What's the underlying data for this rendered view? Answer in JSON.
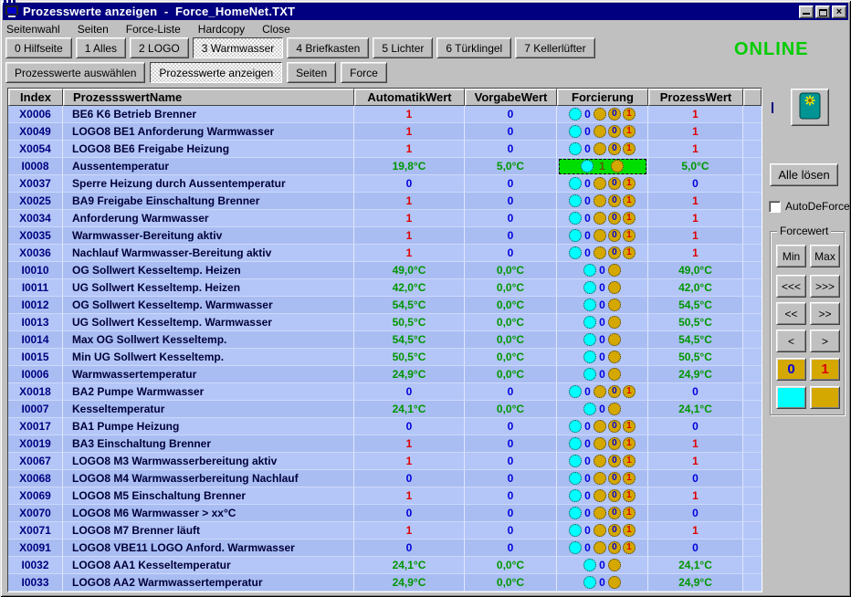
{
  "window": {
    "title": "Prozesswerte anzeigen  -  Force_HomeNet.TXT",
    "online_status": "ONLINE"
  },
  "menu": {
    "items": [
      "Seitenwahl",
      "Seiten",
      "Force-Liste",
      "Hardcopy",
      "Close"
    ]
  },
  "toolbar_pages": [
    {
      "label": "0 Hilfseite",
      "active": false
    },
    {
      "label": "1 Alles",
      "active": false
    },
    {
      "label": "2 LOGO",
      "active": false
    },
    {
      "label": "3 Warmwasser",
      "active": true
    },
    {
      "label": "4 Briefkasten",
      "active": false
    },
    {
      "label": "5 Lichter",
      "active": false
    },
    {
      "label": "6 Türklingel",
      "active": false
    },
    {
      "label": "7 Kellerlüfter",
      "active": false
    }
  ],
  "toolbar_views": [
    {
      "label": "Prozesswerte auswählen",
      "active": false
    },
    {
      "label": "Prozesswerte anzeigen",
      "active": true
    },
    {
      "label": "Seiten",
      "active": false
    },
    {
      "label": "Force",
      "active": false
    }
  ],
  "table": {
    "headers": [
      "Index",
      "ProzessswertName",
      "AutomatikWert",
      "VorgabeWert",
      "Forcierung",
      "ProzessWert"
    ],
    "force_labels": {
      "off": "0",
      "on": "1"
    },
    "rows": [
      {
        "index": "X0006",
        "name": "BE6 K6 Betrieb Brenner",
        "auto": "1",
        "vorgabe": "0",
        "prozess": "1",
        "kind": "binary",
        "forced": false
      },
      {
        "index": "X0049",
        "name": "LOGO8 BE1 Anforderung Warmwasser",
        "auto": "1",
        "vorgabe": "0",
        "prozess": "1",
        "kind": "binary",
        "forced": false
      },
      {
        "index": "X0054",
        "name": "LOGO8 BE6 Freigabe Heizung",
        "auto": "1",
        "vorgabe": "0",
        "prozess": "1",
        "kind": "binary",
        "forced": false
      },
      {
        "index": "I0008",
        "name": "Aussentemperatur",
        "auto": "19,8°C",
        "vorgabe": "5,0°C",
        "prozess": "5,0°C",
        "kind": "analog",
        "forced": true
      },
      {
        "index": "X0037",
        "name": "Sperre Heizung durch Aussentemperatur",
        "auto": "0",
        "vorgabe": "0",
        "prozess": "0",
        "kind": "binary",
        "forced": false
      },
      {
        "index": "X0025",
        "name": "BA9 Freigabe Einschaltung Brenner",
        "auto": "1",
        "vorgabe": "0",
        "prozess": "1",
        "kind": "binary",
        "forced": false
      },
      {
        "index": "X0034",
        "name": "Anforderung Warmwasser",
        "auto": "1",
        "vorgabe": "0",
        "prozess": "1",
        "kind": "binary",
        "forced": false
      },
      {
        "index": "X0035",
        "name": "Warmwasser-Bereitung aktiv",
        "auto": "1",
        "vorgabe": "0",
        "prozess": "1",
        "kind": "binary",
        "forced": false
      },
      {
        "index": "X0036",
        "name": "Nachlauf Warmwasser-Bereitung aktiv",
        "auto": "1",
        "vorgabe": "0",
        "prozess": "1",
        "kind": "binary",
        "forced": false
      },
      {
        "index": "I0010",
        "name": "OG Sollwert Kesseltemp. Heizen",
        "auto": "49,0°C",
        "vorgabe": "0,0°C",
        "prozess": "49,0°C",
        "kind": "analog",
        "forced": false
      },
      {
        "index": "I0011",
        "name": "UG Sollwert Kesseltemp. Heizen",
        "auto": "42,0°C",
        "vorgabe": "0,0°C",
        "prozess": "42,0°C",
        "kind": "analog",
        "forced": false
      },
      {
        "index": "I0012",
        "name": "OG Sollwert Kesseltemp. Warmwasser",
        "auto": "54,5°C",
        "vorgabe": "0,0°C",
        "prozess": "54,5°C",
        "kind": "analog",
        "forced": false
      },
      {
        "index": "I0013",
        "name": "UG Sollwert Kesseltemp. Warmwasser",
        "auto": "50,5°C",
        "vorgabe": "0,0°C",
        "prozess": "50,5°C",
        "kind": "analog",
        "forced": false
      },
      {
        "index": "I0014",
        "name": "Max OG Sollwert Kesseltemp.",
        "auto": "54,5°C",
        "vorgabe": "0,0°C",
        "prozess": "54,5°C",
        "kind": "analog",
        "forced": false
      },
      {
        "index": "I0015",
        "name": "Min UG Sollwert Kesseltemp.",
        "auto": "50,5°C",
        "vorgabe": "0,0°C",
        "prozess": "50,5°C",
        "kind": "analog",
        "forced": false
      },
      {
        "index": "I0006",
        "name": "Warmwassertemperatur",
        "auto": "24,9°C",
        "vorgabe": "0,0°C",
        "prozess": "24,9°C",
        "kind": "analog",
        "forced": false
      },
      {
        "index": "X0018",
        "name": "BA2 Pumpe Warmwasser",
        "auto": "0",
        "vorgabe": "0",
        "prozess": "0",
        "kind": "binary",
        "forced": false
      },
      {
        "index": "I0007",
        "name": "Kesseltemperatur",
        "auto": "24,1°C",
        "vorgabe": "0,0°C",
        "prozess": "24,1°C",
        "kind": "analog",
        "forced": false
      },
      {
        "index": "X0017",
        "name": "BA1 Pumpe Heizung",
        "auto": "0",
        "vorgabe": "0",
        "prozess": "0",
        "kind": "binary",
        "forced": false
      },
      {
        "index": "X0019",
        "name": "BA3 Einschaltung Brenner",
        "auto": "1",
        "vorgabe": "0",
        "prozess": "1",
        "kind": "binary",
        "forced": false
      },
      {
        "index": "X0067",
        "name": "LOGO8 M3 Warmwasserbereitung aktiv",
        "auto": "1",
        "vorgabe": "0",
        "prozess": "1",
        "kind": "binary",
        "forced": false
      },
      {
        "index": "X0068",
        "name": "LOGO8 M4 Warmwasserbereitung Nachlauf",
        "auto": "0",
        "vorgabe": "0",
        "prozess": "0",
        "kind": "binary",
        "forced": false
      },
      {
        "index": "X0069",
        "name": "LOGO8 M5 Einschaltung Brenner",
        "auto": "1",
        "vorgabe": "0",
        "prozess": "1",
        "kind": "binary",
        "forced": false
      },
      {
        "index": "X0070",
        "name": "LOGO8 M6 Warmwasser > xx°C",
        "auto": "0",
        "vorgabe": "0",
        "prozess": "0",
        "kind": "binary",
        "forced": false
      },
      {
        "index": "X0071",
        "name": "LOGO8 M7 Brenner läuft",
        "auto": "1",
        "vorgabe": "0",
        "prozess": "1",
        "kind": "binary",
        "forced": false
      },
      {
        "index": "X0091",
        "name": "LOGO8 VBE11 LOGO Anford. Warmwasser",
        "auto": "0",
        "vorgabe": "0",
        "prozess": "0",
        "kind": "binary",
        "forced": false
      },
      {
        "index": "I0032",
        "name": "LOGO8 AA1 Kesseltemperatur",
        "auto": "24,1°C",
        "vorgabe": "0,0°C",
        "prozess": "24,1°C",
        "kind": "analog",
        "forced": false
      },
      {
        "index": "I0033",
        "name": "LOGO8 AA2 Warmwassertemperatur",
        "auto": "24,9°C",
        "vorgabe": "0,0°C",
        "prozess": "24,9°C",
        "kind": "analog",
        "forced": false
      }
    ]
  },
  "panel": {
    "alle_loesen": "Alle lösen",
    "autodeforce": "AutoDeForce",
    "forcewert": {
      "legend": "Forcewert",
      "rows": [
        {
          "left": "Min",
          "right": "Max",
          "type": "text"
        },
        {
          "left": "<<<",
          "right": ">>>",
          "type": "text"
        },
        {
          "left": "<<",
          "right": ">>",
          "type": "text"
        },
        {
          "left": "<",
          "right": ">",
          "type": "text"
        },
        {
          "left": "0",
          "right": "1",
          "type": "digit"
        },
        {
          "left": "",
          "right": "",
          "type": "swatch"
        }
      ]
    }
  },
  "colors": {
    "titlebar": "#000080",
    "silver": "#c0c0c0",
    "online": "#00cc00",
    "rowlight": "#b4c6f7",
    "rowdark": "#a9bdf2",
    "red": "#dd0000",
    "blue": "#0000dd",
    "green": "#009600",
    "navy": "#000080",
    "namedark": "#00003a",
    "cyan": "#00ffff",
    "gold": "#d4a800",
    "forcedgreen": "#00dd00",
    "teal": "#009494",
    "staryellow": "#ffee00"
  }
}
